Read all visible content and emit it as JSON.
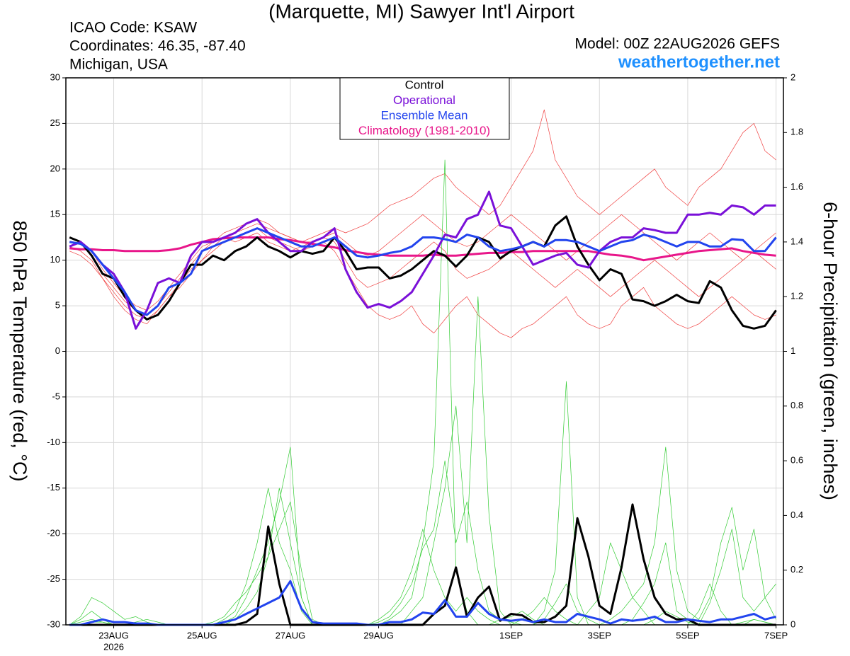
{
  "chart_data": {
    "type": "line",
    "title": "(Marquette, MI) Sawyer Int'l Airport",
    "info_lines": [
      "ICAO Code: KSAW",
      "Coordinates: 46.35, -87.40",
      "Michigan, USA"
    ],
    "model": "Model: 00Z 22AUG2026 GEFS",
    "site": "weathertogether.net",
    "ylabel": "850 hPa Temperature (red, °C)",
    "y2label": "6-hour Precipitation (green, inches)",
    "grid": true,
    "xlim": [
      -2,
      388
    ],
    "xticks": [
      {
        "value": 24,
        "label": "23AUG"
      },
      {
        "value": 72,
        "label": "25AUG"
      },
      {
        "value": 120,
        "label": "27AUG"
      },
      {
        "value": 168,
        "label": "29AUG"
      },
      {
        "value": 240,
        "label": "1SEP"
      },
      {
        "value": 288,
        "label": "3SEP"
      },
      {
        "value": 336,
        "label": "5SEP"
      },
      {
        "value": 384,
        "label": "7SEP"
      }
    ],
    "x_year": "2026",
    "ylim": [
      -30,
      30
    ],
    "yticks": [
      -30,
      -25,
      -20,
      -15,
      -10,
      -5,
      0,
      5,
      10,
      15,
      20,
      25,
      30
    ],
    "y2lim": [
      0,
      2
    ],
    "y2ticks": [
      0,
      0.2,
      0.4,
      0.6,
      0.8,
      1,
      1.2,
      1.4,
      1.6,
      1.8,
      2
    ],
    "x": [
      0,
      6,
      12,
      18,
      24,
      30,
      36,
      42,
      48,
      54,
      60,
      66,
      72,
      78,
      84,
      90,
      96,
      102,
      108,
      114,
      120,
      126,
      132,
      138,
      144,
      150,
      156,
      162,
      168,
      174,
      180,
      186,
      192,
      198,
      204,
      210,
      216,
      222,
      228,
      234,
      240,
      246,
      252,
      258,
      264,
      270,
      276,
      282,
      288,
      294,
      300,
      306,
      312,
      318,
      324,
      330,
      336,
      342,
      348,
      354,
      360,
      366,
      372,
      378,
      384
    ],
    "series": [
      {
        "color": "#f04040",
        "line_width": 0.7,
        "values": [
          12,
          11.8,
          10.5,
          8.5,
          7,
          5.5,
          4.5,
          4,
          5,
          6.5,
          8,
          9.5,
          11,
          12,
          12.5,
          13,
          13.5,
          14,
          13.5,
          13,
          12.5,
          12,
          12.5,
          13,
          13.5,
          13,
          13.5,
          14,
          15,
          16,
          16.5,
          17,
          18,
          19,
          19.5,
          18,
          17,
          16,
          15,
          16,
          18,
          20,
          22,
          26.5,
          21,
          19,
          17,
          16,
          15,
          16,
          17,
          18,
          19,
          20,
          18,
          17,
          16,
          18,
          19,
          20,
          22,
          24,
          25,
          22,
          21
        ]
      },
      {
        "color": "#f04040",
        "line_width": 0.7,
        "values": [
          11.5,
          11,
          10,
          8,
          6,
          4.5,
          3.5,
          3,
          4.5,
          6,
          7.5,
          9,
          10,
          11,
          12,
          12.5,
          13,
          13.5,
          12.5,
          12,
          11.5,
          11,
          11.5,
          12,
          11,
          9,
          7,
          5,
          4,
          3.5,
          4,
          5,
          3,
          2,
          3.5,
          5,
          6,
          4,
          3,
          2,
          1.5,
          2.5,
          3,
          4,
          5,
          6,
          4,
          3,
          2.5,
          3,
          5,
          6,
          7,
          5,
          4,
          3,
          2.5,
          3,
          4,
          5,
          6,
          5,
          4,
          3.5,
          4
        ]
      },
      {
        "color": "#f04040",
        "line_width": 0.7,
        "values": [
          12.5,
          12,
          11,
          9,
          7.5,
          6,
          5,
          4.5,
          5.5,
          7,
          8.5,
          10,
          11.5,
          12,
          13,
          13.5,
          14,
          14.5,
          14,
          13,
          12.5,
          12,
          12,
          12.5,
          13,
          12,
          11,
          10.5,
          11,
          12,
          13,
          14,
          15,
          14,
          13,
          12,
          11.5,
          12,
          13,
          14,
          15,
          14,
          13,
          12,
          11,
          10,
          11,
          12,
          13,
          14,
          15,
          14,
          13,
          12,
          11,
          10,
          11,
          12,
          13,
          12,
          11,
          10,
          11,
          12,
          13
        ]
      },
      {
        "color": "#f04040",
        "line_width": 0.7,
        "values": [
          11,
          10.5,
          9.5,
          8,
          6.5,
          5,
          4,
          3.5,
          4.5,
          6,
          7,
          8.5,
          10,
          11.5,
          12.5,
          12,
          12.5,
          13,
          12,
          11.5,
          11,
          11.5,
          12,
          12.5,
          12,
          10,
          8,
          7,
          7.5,
          8,
          9,
          10,
          11,
          12,
          11,
          9,
          8,
          8.5,
          9,
          10,
          11,
          10,
          9,
          8,
          7,
          8,
          9,
          8,
          7,
          6,
          7,
          8,
          9,
          10,
          9,
          8,
          7,
          6,
          7,
          8,
          9,
          10,
          11,
          10,
          9
        ]
      },
      {
        "color": "#33cc33",
        "axis": "y2",
        "line_width": 0.7,
        "values": [
          0,
          0.02,
          0.05,
          0.02,
          0,
          0,
          0.01,
          0.02,
          0.01,
          0,
          0,
          0,
          0,
          0,
          0.01,
          0.03,
          0.1,
          0.2,
          0.3,
          0.45,
          0.65,
          0.1,
          0,
          0,
          0,
          0,
          0,
          0,
          0,
          0.02,
          0.05,
          0.1,
          0.3,
          0.6,
          1.7,
          0.2,
          0.05,
          0,
          0,
          0.02,
          0.03,
          0.05,
          0.02,
          0,
          0,
          0,
          0,
          0,
          0,
          0,
          0,
          0,
          0,
          0.02,
          0.05,
          0.03,
          0.01,
          0,
          0,
          0,
          0,
          0.01,
          0.02,
          0.01,
          0
        ]
      },
      {
        "color": "#33cc33",
        "axis": "y2",
        "line_width": 0.7,
        "values": [
          0,
          0,
          0.01,
          0.01,
          0,
          0,
          0,
          0,
          0,
          0,
          0,
          0,
          0,
          0,
          0.02,
          0.05,
          0.15,
          0.3,
          0.5,
          0.3,
          0.2,
          0.05,
          0,
          0,
          0,
          0,
          0,
          0,
          0,
          0,
          0,
          0.05,
          0.1,
          0.3,
          0.5,
          0.8,
          0.3,
          1.2,
          0.4,
          0.05,
          0,
          0,
          0,
          0.05,
          0.2,
          0.89,
          0.1,
          0,
          0,
          0.02,
          0.05,
          0.1,
          0.05,
          0,
          0,
          0,
          0,
          0.05,
          0.15,
          0.05,
          0,
          0,
          0.02,
          0.01,
          0
        ]
      },
      {
        "color": "#33cc33",
        "axis": "y2",
        "line_width": 0.7,
        "values": [
          0,
          0.03,
          0.1,
          0.08,
          0.05,
          0.02,
          0.03,
          0.01,
          0,
          0,
          0,
          0,
          0,
          0,
          0,
          0.02,
          0.06,
          0.12,
          0.25,
          0.35,
          0.45,
          0.2,
          0.02,
          0,
          0,
          0,
          0,
          0,
          0.02,
          0.05,
          0.1,
          0.2,
          0.35,
          0.2,
          0.1,
          0.05,
          0.1,
          0.05,
          0.02,
          0,
          0,
          0.02,
          0.05,
          0.1,
          0.05,
          0.02,
          0,
          0.05,
          0.1,
          0.3,
          0.2,
          0.1,
          0.15,
          0.3,
          0.65,
          0.2,
          0.05,
          0.02,
          0.1,
          0.3,
          0.43,
          0.2,
          0.35,
          0.1,
          0.02
        ]
      },
      {
        "color": "#33cc33",
        "axis": "y2",
        "line_width": 0.7,
        "values": [
          0,
          0.01,
          0.02,
          0.01,
          0,
          0,
          0,
          0,
          0,
          0,
          0,
          0,
          0,
          0.01,
          0.03,
          0.08,
          0.12,
          0.18,
          0.25,
          0.5,
          0.3,
          0.1,
          0,
          0,
          0,
          0,
          0,
          0,
          0.01,
          0.03,
          0.08,
          0.15,
          0.28,
          0.35,
          0.6,
          0.3,
          0.45,
          0.2,
          0.05,
          0.02,
          0.01,
          0,
          0,
          0.02,
          0.08,
          0.15,
          0.05,
          0.02,
          0,
          0,
          0,
          0.02,
          0.08,
          0.15,
          0.3,
          0.05,
          0.02,
          0,
          0.08,
          0.2,
          0.35,
          0.1,
          0.05,
          0.1,
          0.15
        ]
      },
      {
        "color": "#000000",
        "axis": "y2",
        "line_width": 3,
        "values": [
          0,
          0,
          0,
          0,
          0,
          0,
          0,
          0,
          0,
          0,
          0,
          0,
          0,
          0,
          0,
          0,
          0.01,
          0.04,
          0.36,
          0.15,
          0,
          0,
          0,
          0,
          0,
          0,
          0,
          0,
          0,
          0,
          0,
          0,
          0,
          0.04,
          0.07,
          0.21,
          0.03,
          0.1,
          0.14,
          0.015,
          0.04,
          0.035,
          0.01,
          0.01,
          0.03,
          0.07,
          0.39,
          0.25,
          0.07,
          0.04,
          0.21,
          0.44,
          0.24,
          0.1,
          0.04,
          0.02,
          0.02,
          0,
          0,
          0,
          0,
          0,
          0,
          0,
          0
        ]
      },
      {
        "color": "#2244ee",
        "axis": "y2",
        "line_width": 3,
        "values": [
          0,
          0,
          0.01,
          0.02,
          0.01,
          0.01,
          0.005,
          0.005,
          0,
          0,
          0,
          0,
          0,
          0,
          0.01,
          0.02,
          0.04,
          0.06,
          0.08,
          0.1,
          0.16,
          0.06,
          0.01,
          0.005,
          0.005,
          0.005,
          0.005,
          0,
          0,
          0.01,
          0.01,
          0.02,
          0.045,
          0.04,
          0.09,
          0.03,
          0.03,
          0.08,
          0.04,
          0.02,
          0.015,
          0.02,
          0.01,
          0.02,
          0.01,
          0.01,
          0.04,
          0.03,
          0.02,
          0.005,
          0.02,
          0.015,
          0.02,
          0.03,
          0.01,
          0.01,
          0.02,
          0.015,
          0.01,
          0.02,
          0.02,
          0.03,
          0.04,
          0.02,
          0.03
        ]
      },
      {
        "name": "Climatology (1981-2010)",
        "color": "#e8168a",
        "line_width": 3,
        "values": [
          11.3,
          11.2,
          11.2,
          11.1,
          11.1,
          11,
          11,
          11,
          11,
          11.1,
          11.3,
          11.7,
          12,
          12.3,
          12.4,
          12.5,
          12.5,
          12.5,
          12.5,
          12.3,
          12.2,
          12,
          11.8,
          11.6,
          11.4,
          11.1,
          10.9,
          10.7,
          10.6,
          10.5,
          10.5,
          10.5,
          10.5,
          10.6,
          10.5,
          10.5,
          10.6,
          10.7,
          10.8,
          10.8,
          10.9,
          10.9,
          11,
          11,
          11,
          11,
          11,
          11,
          10.8,
          10.6,
          10.5,
          10.3,
          10,
          10.2,
          10.4,
          10.6,
          10.8,
          11,
          11.1,
          11.2,
          11.3,
          11,
          10.8,
          10.6,
          10.5
        ]
      },
      {
        "name": "Control",
        "color": "#000000",
        "line_width": 3,
        "values": [
          12.5,
          12,
          10.5,
          8.5,
          8,
          6,
          4.5,
          3.5,
          4,
          5.5,
          7.5,
          9.5,
          9.5,
          10.5,
          10,
          11,
          11.5,
          12.5,
          11.5,
          11,
          10.3,
          11,
          10.7,
          11,
          12.5,
          11,
          9,
          9.2,
          9.2,
          8,
          8.3,
          9,
          10,
          11,
          10.5,
          9.3,
          10.5,
          12.5,
          12,
          10.2,
          11,
          11.5,
          12,
          11.5,
          13.8,
          14.8,
          11.5,
          9.5,
          7.8,
          9,
          8.5,
          5.7,
          5.5,
          5,
          5.5,
          6.2,
          5.5,
          5.3,
          7.7,
          7,
          4.5,
          2.8,
          2.5,
          2.8,
          4.5
        ]
      },
      {
        "name": "Operational",
        "color": "#7a10d8",
        "line_width": 3,
        "values": [
          11.5,
          12,
          11,
          9.5,
          8.5,
          6.5,
          2.5,
          4.5,
          7.5,
          8,
          7.5,
          10.5,
          12,
          12,
          12.5,
          13,
          14,
          14.5,
          13,
          12,
          11,
          11,
          12,
          12.5,
          13.5,
          9,
          6.5,
          4.8,
          5.2,
          4.8,
          5.5,
          6.5,
          8.5,
          10.5,
          12.8,
          12.5,
          14.5,
          15,
          17.5,
          13.8,
          13.5,
          11.5,
          9.5,
          10,
          10.5,
          10.8,
          9.5,
          9.2,
          11,
          12,
          12.5,
          12.5,
          13.5,
          13.3,
          13,
          13,
          15,
          15,
          15.2,
          15,
          16,
          15.8,
          15,
          16,
          16
        ]
      },
      {
        "name": "Ensemble Mean",
        "color": "#2244ee",
        "line_width": 3,
        "values": [
          12,
          11.8,
          11,
          9.5,
          8,
          6.5,
          4.5,
          4,
          5,
          7,
          7.5,
          8.5,
          11,
          11.5,
          12,
          12.5,
          13,
          13.5,
          13,
          12.5,
          12,
          11.5,
          11.5,
          12,
          12.5,
          11.5,
          10.5,
          10.3,
          10.5,
          10.8,
          11,
          11.5,
          12.5,
          12.5,
          12.3,
          12,
          12.8,
          12.5,
          11.5,
          11,
          11.2,
          11.5,
          12,
          11.5,
          12.2,
          12.2,
          12,
          11.5,
          11,
          11.5,
          12,
          12.2,
          12.8,
          12.5,
          12,
          11.5,
          12,
          12,
          11.5,
          11.5,
          12.3,
          12.2,
          11,
          11,
          12.5
        ]
      }
    ],
    "legend_order": [
      11,
      12,
      13,
      10
    ]
  }
}
